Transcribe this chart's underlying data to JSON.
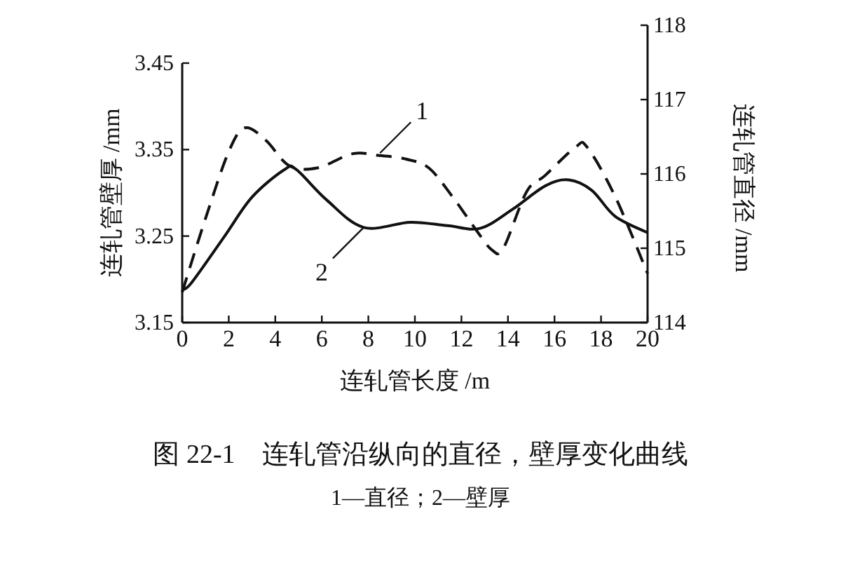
{
  "chart_data": {
    "type": "line",
    "title": "图 22-1　连轧管沿纵向的直径，壁厚变化曲线",
    "subtitle": "1—直径；2—壁厚",
    "xlabel": "连轧管长度 /m",
    "ylabel": "连轧管壁厚 /mm",
    "y2label": "连轧管直径 /mm",
    "xlim": [
      0,
      20
    ],
    "xticks": [
      0,
      2,
      4,
      6,
      8,
      10,
      12,
      14,
      16,
      18,
      20
    ],
    "ylim": [
      3.15,
      3.45
    ],
    "yticks": [
      {
        "value": 3.15,
        "label": "3.15"
      },
      {
        "value": 3.25,
        "label": "3.25"
      },
      {
        "value": 3.35,
        "label": "3.35"
      },
      {
        "value": 3.45,
        "label": "3.45"
      }
    ],
    "y2lim": [
      114,
      118
    ],
    "y2ticks": [
      114,
      115,
      116,
      117,
      118
    ],
    "grid": false,
    "annotations": [
      {
        "text": "1",
        "x": 8.5,
        "y": 3.346
      },
      {
        "text": "2",
        "x": 7.8,
        "y": 3.26
      }
    ],
    "series": [
      {
        "type": "line",
        "axis": "y2",
        "color": "#111111",
        "line_style": "dashed",
        "x": [
          0,
          1.0,
          2.0,
          2.7,
          3.6,
          4.6,
          5.8,
          7.3,
          8.4,
          9.6,
          10.6,
          11.6,
          12.6,
          13.3,
          13.8,
          14.8,
          15.6,
          16.9,
          17.4,
          18.6,
          20.0
        ],
        "values": [
          114.41,
          115.4,
          116.3,
          116.62,
          116.45,
          116.11,
          116.08,
          116.27,
          116.25,
          116.2,
          116.08,
          115.7,
          115.26,
          114.98,
          115.0,
          115.76,
          115.98,
          116.36,
          116.36,
          115.7,
          114.66
        ]
      },
      {
        "type": "line",
        "axis": "y",
        "color": "#111111",
        "line_style": "solid",
        "x": [
          0,
          0.4,
          1.8,
          3.0,
          4.4,
          4.9,
          6.2,
          7.8,
          9.8,
          11.4,
          12.8,
          14.2,
          15.6,
          16.6,
          17.6,
          18.6,
          20.0
        ],
        "values": [
          3.188,
          3.196,
          3.249,
          3.295,
          3.327,
          3.327,
          3.292,
          3.26,
          3.266,
          3.262,
          3.259,
          3.281,
          3.308,
          3.315,
          3.303,
          3.273,
          3.254
        ]
      }
    ]
  }
}
